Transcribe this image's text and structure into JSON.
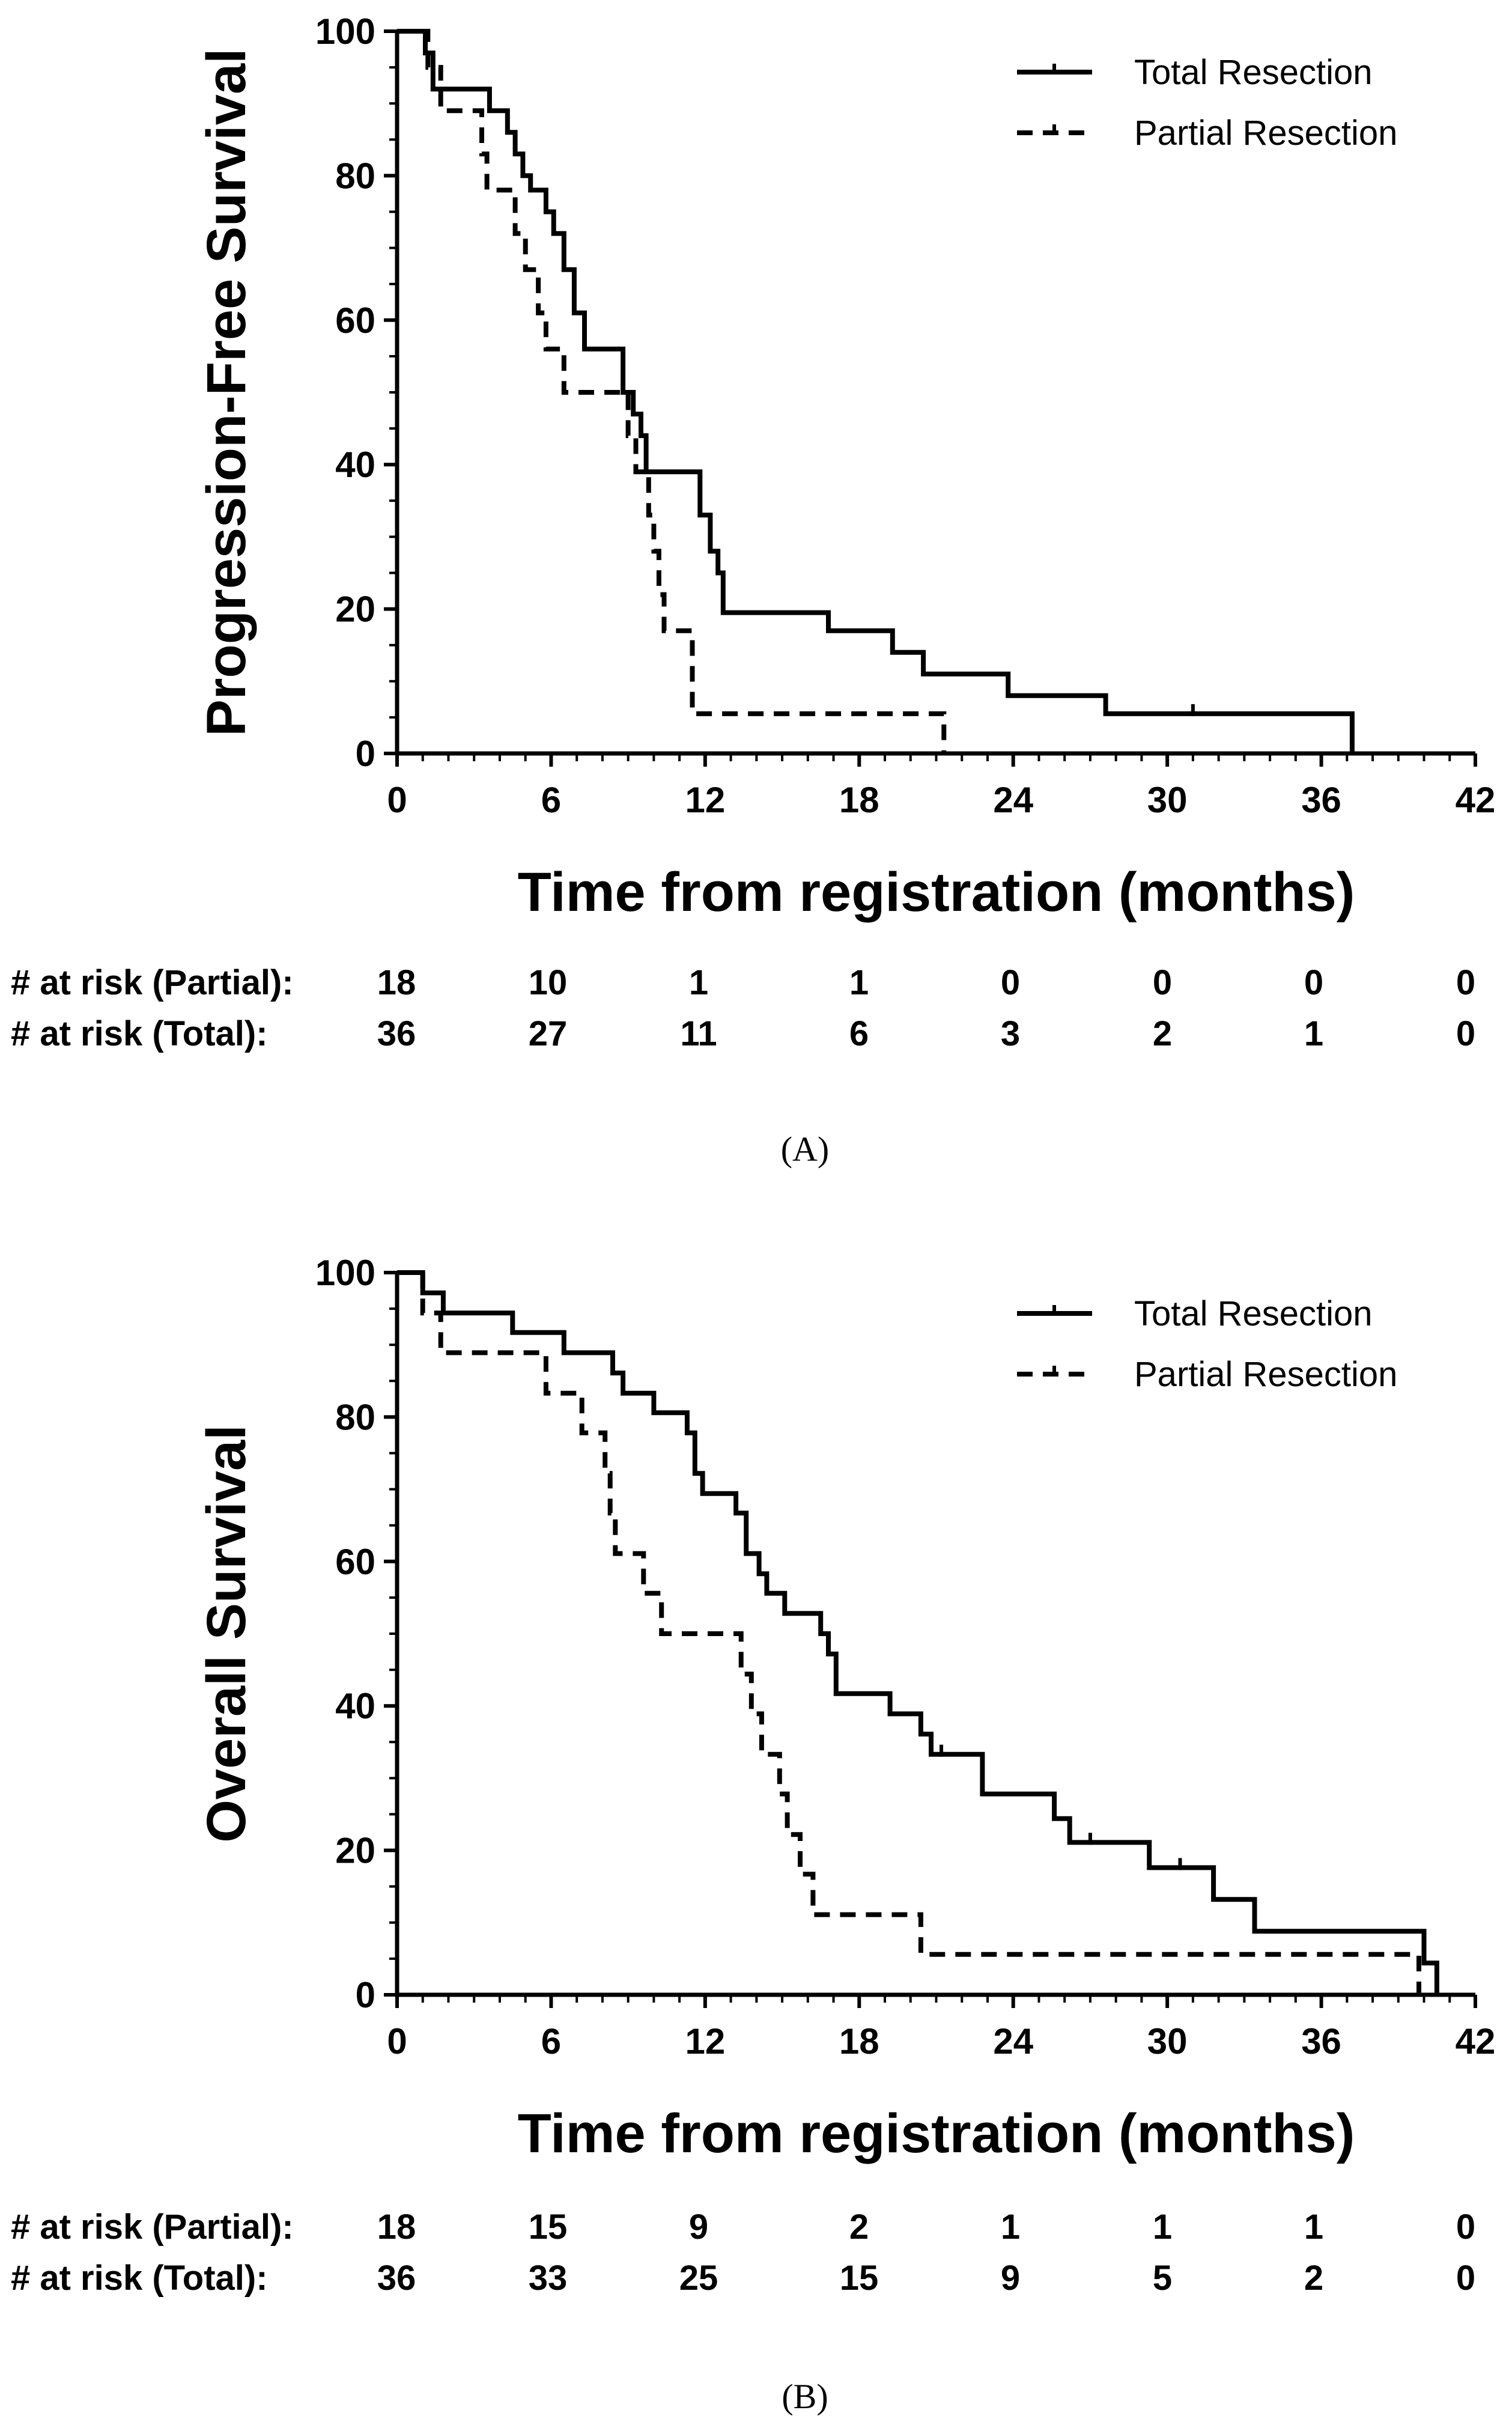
{
  "chart_data": [
    {
      "type": "line",
      "panel_label": "(A)",
      "ylabel": "Progression-Free Survival",
      "xlabel": "Time from registration (months)",
      "xlim": [
        0,
        42
      ],
      "ylim": [
        0,
        100
      ],
      "xticks": [
        "0",
        "6",
        "12",
        "18",
        "24",
        "30",
        "36",
        "42"
      ],
      "yticks": [
        "0",
        "20",
        "40",
        "60",
        "80",
        "100"
      ],
      "legend_position": "top-right",
      "series": [
        {
          "name": "Total Resection",
          "style": "solid",
          "points": [
            [
              0,
              100
            ],
            [
              1.1,
              100
            ],
            [
              1.1,
              97
            ],
            [
              1.4,
              97
            ],
            [
              1.4,
              92
            ],
            [
              3.6,
              92
            ],
            [
              3.6,
              89
            ],
            [
              4.3,
              89
            ],
            [
              4.3,
              86
            ],
            [
              4.6,
              86
            ],
            [
              4.6,
              83
            ],
            [
              4.9,
              83
            ],
            [
              4.9,
              80
            ],
            [
              5.2,
              80
            ],
            [
              5.2,
              78
            ],
            [
              5.8,
              78
            ],
            [
              5.8,
              75
            ],
            [
              6.1,
              75
            ],
            [
              6.1,
              72
            ],
            [
              6.5,
              72
            ],
            [
              6.5,
              67
            ],
            [
              6.9,
              67
            ],
            [
              6.9,
              61
            ],
            [
              7.3,
              61
            ],
            [
              7.3,
              56
            ],
            [
              8.8,
              56
            ],
            [
              8.8,
              50
            ],
            [
              9.2,
              50
            ],
            [
              9.2,
              47
            ],
            [
              9.5,
              47
            ],
            [
              9.5,
              44
            ],
            [
              9.7,
              44
            ],
            [
              9.7,
              39
            ],
            [
              11.8,
              39
            ],
            [
              11.8,
              33
            ],
            [
              12.2,
              33
            ],
            [
              12.2,
              28
            ],
            [
              12.5,
              28
            ],
            [
              12.5,
              25
            ],
            [
              12.7,
              25
            ],
            [
              12.7,
              19.5
            ],
            [
              16.8,
              19.5
            ],
            [
              16.8,
              17
            ],
            [
              19.3,
              17
            ],
            [
              19.3,
              14
            ],
            [
              20.5,
              14
            ],
            [
              20.5,
              11
            ],
            [
              23.8,
              11
            ],
            [
              23.8,
              8
            ],
            [
              27.6,
              8
            ],
            [
              27.6,
              5.5
            ],
            [
              37.2,
              5.5
            ],
            [
              37.2,
              0
            ]
          ],
          "censor_times": [
            1.1,
            31
          ]
        },
        {
          "name": "Partial Resection",
          "style": "dashed",
          "points": [
            [
              0,
              100
            ],
            [
              1.2,
              100
            ],
            [
              1.2,
              95
            ],
            [
              1.7,
              95
            ],
            [
              1.7,
              89
            ],
            [
              3.3,
              89
            ],
            [
              3.3,
              83
            ],
            [
              3.5,
              83
            ],
            [
              3.5,
              78
            ],
            [
              4.6,
              78
            ],
            [
              4.6,
              72
            ],
            [
              5.0,
              72
            ],
            [
              5.0,
              67
            ],
            [
              5.5,
              67
            ],
            [
              5.5,
              61
            ],
            [
              5.8,
              61
            ],
            [
              5.8,
              56
            ],
            [
              6.5,
              56
            ],
            [
              6.5,
              50
            ],
            [
              9.0,
              50
            ],
            [
              9.0,
              44
            ],
            [
              9.3,
              44
            ],
            [
              9.3,
              39
            ],
            [
              9.8,
              39
            ],
            [
              9.8,
              33
            ],
            [
              10.0,
              33
            ],
            [
              10.0,
              28
            ],
            [
              10.2,
              28
            ],
            [
              10.2,
              22
            ],
            [
              10.4,
              22
            ],
            [
              10.4,
              17
            ],
            [
              11.5,
              17
            ],
            [
              11.5,
              5.5
            ],
            [
              21.3,
              5.5
            ],
            [
              21.3,
              0
            ]
          ],
          "censor_times": []
        }
      ],
      "risk_table": {
        "rows": [
          {
            "label": "# at risk (Partial):",
            "values": [
              "18",
              "10",
              "1",
              "1",
              "0",
              "0",
              "0",
              "0"
            ]
          },
          {
            "label": "# at risk (Total):",
            "values": [
              "36",
              "27",
              "11",
              "6",
              "3",
              "2",
              "1",
              "0"
            ]
          }
        ]
      }
    },
    {
      "type": "line",
      "panel_label": "(B)",
      "ylabel": "Overall Survival",
      "xlabel": "Time from registration (months)",
      "xlim": [
        0,
        42
      ],
      "ylim": [
        0,
        100
      ],
      "xticks": [
        "0",
        "6",
        "12",
        "18",
        "24",
        "30",
        "36",
        "42"
      ],
      "yticks": [
        "0",
        "20",
        "40",
        "60",
        "80",
        "100"
      ],
      "legend_position": "top-right",
      "series": [
        {
          "name": "Total Resection",
          "style": "solid",
          "points": [
            [
              0,
              100
            ],
            [
              1.0,
              100
            ],
            [
              1.0,
              97.2
            ],
            [
              1.8,
              97.2
            ],
            [
              1.8,
              94.4
            ],
            [
              4.5,
              94.4
            ],
            [
              4.5,
              91.7
            ],
            [
              6.5,
              91.7
            ],
            [
              6.5,
              88.9
            ],
            [
              8.4,
              88.9
            ],
            [
              8.4,
              86.1
            ],
            [
              8.8,
              86.1
            ],
            [
              8.8,
              83.3
            ],
            [
              10.0,
              83.3
            ],
            [
              10.0,
              80.6
            ],
            [
              11.3,
              80.6
            ],
            [
              11.3,
              77.8
            ],
            [
              11.6,
              77.8
            ],
            [
              11.6,
              72.2
            ],
            [
              11.9,
              72.2
            ],
            [
              11.9,
              69.4
            ],
            [
              13.2,
              69.4
            ],
            [
              13.2,
              66.7
            ],
            [
              13.6,
              66.7
            ],
            [
              13.6,
              61.1
            ],
            [
              14.1,
              61.1
            ],
            [
              14.1,
              58.3
            ],
            [
              14.4,
              58.3
            ],
            [
              14.4,
              55.6
            ],
            [
              15.1,
              55.6
            ],
            [
              15.1,
              52.8
            ],
            [
              16.5,
              52.8
            ],
            [
              16.5,
              50
            ],
            [
              16.8,
              50
            ],
            [
              16.8,
              47.2
            ],
            [
              17.1,
              47.2
            ],
            [
              17.1,
              41.7
            ],
            [
              19.2,
              41.7
            ],
            [
              19.2,
              38.9
            ],
            [
              20.4,
              38.9
            ],
            [
              20.4,
              36.1
            ],
            [
              20.8,
              36.1
            ],
            [
              20.8,
              33.3
            ],
            [
              22.8,
              33.3
            ],
            [
              22.8,
              27.8
            ],
            [
              25.6,
              27.8
            ],
            [
              25.6,
              24.4
            ],
            [
              26.2,
              24.4
            ],
            [
              26.2,
              21.1
            ],
            [
              29.3,
              21.1
            ],
            [
              29.3,
              17.6
            ],
            [
              31.8,
              17.6
            ],
            [
              31.8,
              13.2
            ],
            [
              33.4,
              13.2
            ],
            [
              33.4,
              8.8
            ],
            [
              40.0,
              8.8
            ],
            [
              40.0,
              4.4
            ],
            [
              40.5,
              4.4
            ],
            [
              40.5,
              0
            ]
          ],
          "censor_times": [
            21.2,
            27.0,
            30.5
          ]
        },
        {
          "name": "Partial Resection",
          "style": "dashed",
          "points": [
            [
              0,
              100
            ],
            [
              1.0,
              100
            ],
            [
              1.0,
              94.4
            ],
            [
              1.7,
              94.4
            ],
            [
              1.7,
              88.9
            ],
            [
              5.8,
              88.9
            ],
            [
              5.8,
              83.3
            ],
            [
              7.2,
              83.3
            ],
            [
              7.2,
              77.8
            ],
            [
              8.1,
              77.8
            ],
            [
              8.1,
              72.2
            ],
            [
              8.3,
              72.2
            ],
            [
              8.3,
              66.7
            ],
            [
              8.5,
              66.7
            ],
            [
              8.5,
              61.1
            ],
            [
              9.6,
              61.1
            ],
            [
              9.6,
              55.6
            ],
            [
              10.3,
              55.6
            ],
            [
              10.3,
              50
            ],
            [
              13.4,
              50
            ],
            [
              13.4,
              44.4
            ],
            [
              13.8,
              44.4
            ],
            [
              13.8,
              38.9
            ],
            [
              14.2,
              38.9
            ],
            [
              14.2,
              33.3
            ],
            [
              14.9,
              33.3
            ],
            [
              14.9,
              27.8
            ],
            [
              15.2,
              27.8
            ],
            [
              15.2,
              22.2
            ],
            [
              15.7,
              22.2
            ],
            [
              15.7,
              16.7
            ],
            [
              16.2,
              16.7
            ],
            [
              16.2,
              11.1
            ],
            [
              20.4,
              11.1
            ],
            [
              20.4,
              5.6
            ],
            [
              39.8,
              5.6
            ],
            [
              39.8,
              0
            ]
          ],
          "censor_times": []
        }
      ],
      "risk_table": {
        "rows": [
          {
            "label": "# at risk (Partial):",
            "values": [
              "18",
              "15",
              "9",
              "2",
              "1",
              "1",
              "1",
              "0"
            ]
          },
          {
            "label": "# at risk (Total):",
            "values": [
              "36",
              "33",
              "25",
              "15",
              "9",
              "5",
              "2",
              "0"
            ]
          }
        ]
      }
    }
  ]
}
